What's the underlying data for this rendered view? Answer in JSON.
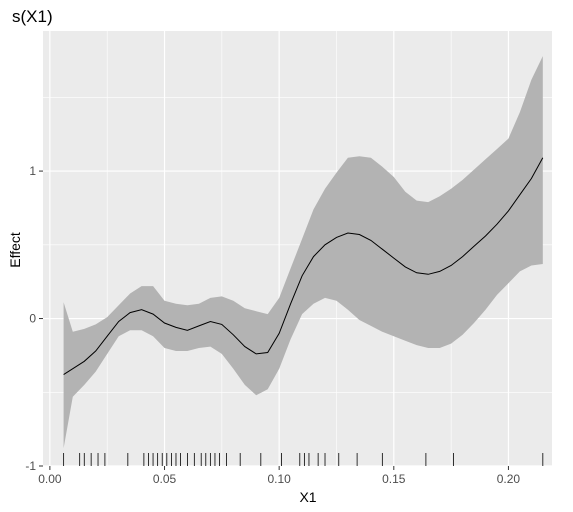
{
  "chart_data": {
    "type": "line",
    "title": "s(X1)",
    "xlabel": "X1",
    "ylabel": "Effect",
    "xlim": [
      -0.003,
      0.219
    ],
    "ylim": [
      -1.0,
      1.95
    ],
    "grid": true,
    "legend": "none",
    "x_ticks": [
      {
        "value": 0.0,
        "label": "0.00"
      },
      {
        "value": 0.05,
        "label": "0.05"
      },
      {
        "value": 0.1,
        "label": "0.10"
      },
      {
        "value": 0.15,
        "label": "0.15"
      },
      {
        "value": 0.2,
        "label": "0.20"
      }
    ],
    "y_ticks": [
      {
        "value": -1,
        "label": "-1"
      },
      {
        "value": 0,
        "label": "0"
      },
      {
        "value": 1,
        "label": "1"
      }
    ],
    "x": [
      0.006,
      0.01,
      0.015,
      0.02,
      0.025,
      0.03,
      0.035,
      0.04,
      0.045,
      0.05,
      0.055,
      0.06,
      0.065,
      0.07,
      0.075,
      0.08,
      0.085,
      0.09,
      0.095,
      0.1,
      0.105,
      0.11,
      0.115,
      0.12,
      0.125,
      0.13,
      0.135,
      0.14,
      0.145,
      0.15,
      0.155,
      0.16,
      0.165,
      0.17,
      0.175,
      0.18,
      0.185,
      0.19,
      0.195,
      0.2,
      0.205,
      0.21,
      0.215
    ],
    "series": [
      {
        "fit": [
          -0.38,
          -0.34,
          -0.29,
          -0.22,
          -0.12,
          -0.02,
          0.04,
          0.06,
          0.03,
          -0.03,
          -0.06,
          -0.08,
          -0.05,
          -0.02,
          -0.04,
          -0.11,
          -0.19,
          -0.24,
          -0.23,
          -0.1,
          0.1,
          0.29,
          0.42,
          0.5,
          0.55,
          0.58,
          0.57,
          0.53,
          0.47,
          0.41,
          0.35,
          0.31,
          0.3,
          0.32,
          0.36,
          0.42,
          0.49,
          0.56,
          0.64,
          0.73,
          0.84,
          0.95,
          1.09
        ],
        "lower": [
          -0.88,
          -0.53,
          -0.45,
          -0.36,
          -0.24,
          -0.12,
          -0.08,
          -0.08,
          -0.12,
          -0.2,
          -0.22,
          -0.22,
          -0.2,
          -0.19,
          -0.24,
          -0.34,
          -0.45,
          -0.52,
          -0.48,
          -0.34,
          -0.14,
          0.03,
          0.1,
          0.14,
          0.12,
          0.06,
          -0.01,
          -0.05,
          -0.09,
          -0.12,
          -0.15,
          -0.18,
          -0.2,
          -0.2,
          -0.17,
          -0.11,
          -0.03,
          0.06,
          0.16,
          0.24,
          0.32,
          0.36,
          0.37
        ],
        "upper": [
          0.11,
          -0.09,
          -0.07,
          -0.04,
          0.01,
          0.09,
          0.17,
          0.22,
          0.22,
          0.12,
          0.1,
          0.09,
          0.1,
          0.14,
          0.15,
          0.12,
          0.07,
          0.05,
          0.03,
          0.14,
          0.34,
          0.54,
          0.74,
          0.88,
          0.99,
          1.09,
          1.1,
          1.09,
          1.03,
          0.96,
          0.86,
          0.8,
          0.79,
          0.83,
          0.88,
          0.94,
          1.01,
          1.08,
          1.15,
          1.22,
          1.4,
          1.62,
          1.78
        ]
      }
    ],
    "rug": [
      0.006,
      0.013,
      0.015,
      0.018,
      0.021,
      0.024,
      0.034,
      0.041,
      0.043,
      0.045,
      0.047,
      0.049,
      0.051,
      0.053,
      0.055,
      0.057,
      0.06,
      0.063,
      0.066,
      0.068,
      0.07,
      0.072,
      0.074,
      0.077,
      0.083,
      0.092,
      0.101,
      0.109,
      0.111,
      0.113,
      0.117,
      0.12,
      0.126,
      0.134,
      0.145,
      0.164,
      0.176,
      0.215
    ],
    "colors": {
      "panel": "#ebebeb",
      "grid": "#ffffff",
      "band": "#b3b3b3",
      "line": "#000000",
      "rug": "#000000",
      "tick_label": "#4d4d4d"
    }
  }
}
